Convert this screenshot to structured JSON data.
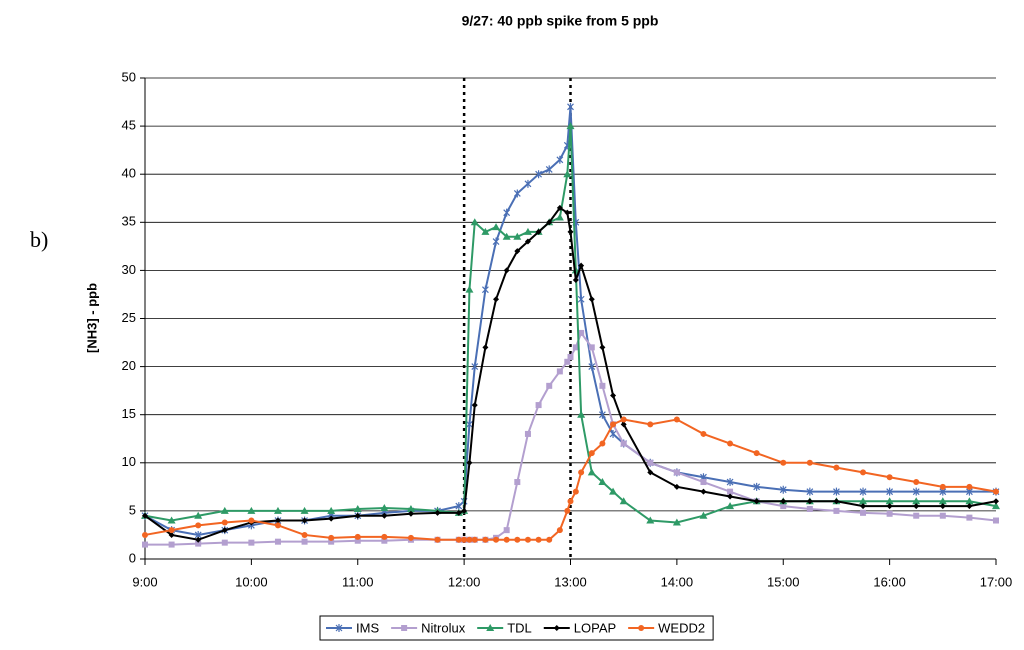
{
  "chart_data": {
    "type": "line",
    "title": "9/27: 40 ppb spike from 5 ppb",
    "panel_label": "b)",
    "ylabel": "[NH3] - ppb",
    "x": [
      9,
      9.25,
      9.5,
      9.75,
      10,
      10.25,
      10.5,
      10.75,
      11,
      11.25,
      11.5,
      11.75,
      11.95,
      12.0,
      12.05,
      12.1,
      12.2,
      12.3,
      12.4,
      12.5,
      12.6,
      12.7,
      12.8,
      12.9,
      12.97,
      13.0,
      13.05,
      13.1,
      13.2,
      13.3,
      13.4,
      13.5,
      13.75,
      14,
      14.25,
      14.5,
      14.75,
      15,
      15.25,
      15.5,
      15.75,
      16,
      16.25,
      16.5,
      16.75,
      17
    ],
    "series": [
      {
        "name": "IMS",
        "color": "#4a6fb5",
        "marker": "star",
        "values": [
          4.5,
          3,
          2.5,
          3,
          3.5,
          4,
          4,
          4.5,
          4.5,
          4.8,
          5,
          5,
          5.5,
          6,
          14,
          20,
          28,
          33,
          36,
          38,
          39,
          40,
          40.5,
          41.5,
          43,
          47,
          35,
          27,
          20,
          15,
          13,
          12,
          10,
          9,
          8.5,
          8,
          7.5,
          7.2,
          7,
          7,
          7,
          7,
          7,
          7,
          7,
          7
        ]
      },
      {
        "name": "Nitrolux",
        "color": "#b39fcf",
        "marker": "square",
        "values": [
          1.5,
          1.5,
          1.6,
          1.7,
          1.7,
          1.8,
          1.8,
          1.8,
          1.9,
          1.9,
          2,
          2,
          2,
          2,
          2,
          2,
          2,
          2.2,
          3,
          8,
          13,
          16,
          18,
          19.5,
          20.5,
          21,
          22,
          23.5,
          22,
          18,
          14,
          12,
          10,
          9,
          8,
          7,
          6,
          5.5,
          5.2,
          5,
          4.8,
          4.7,
          4.5,
          4.5,
          4.3,
          4
        ]
      },
      {
        "name": "TDL",
        "color": "#2e9a66",
        "marker": "triangle",
        "values": [
          4.5,
          4,
          4.5,
          5,
          5,
          5,
          5,
          5,
          5.2,
          5.3,
          5.2,
          5,
          4.8,
          5,
          28,
          35,
          34,
          34.5,
          33.5,
          33.5,
          34,
          34,
          35,
          35.5,
          40,
          45,
          30,
          15,
          9,
          8,
          7,
          6,
          4,
          3.8,
          4.5,
          5.5,
          6,
          6,
          6,
          6,
          6,
          6,
          6,
          6,
          6,
          5.5
        ]
      },
      {
        "name": "LOPAP",
        "color": "#000000",
        "marker": "diamond",
        "values": [
          4.5,
          2.5,
          2,
          3,
          3.8,
          4,
          4,
          4.2,
          4.5,
          4.5,
          4.7,
          4.8,
          4.8,
          5,
          10,
          16,
          22,
          27,
          30,
          32,
          33,
          34,
          35,
          36.5,
          36,
          34,
          29,
          30.5,
          27,
          22,
          17,
          14,
          9,
          7.5,
          7,
          6.5,
          6,
          6,
          6,
          6,
          5.5,
          5.5,
          5.5,
          5.5,
          5.5,
          6
        ]
      },
      {
        "name": "WEDD2",
        "color": "#f26522",
        "marker": "circle",
        "values": [
          2.5,
          3,
          3.5,
          3.8,
          4,
          3.5,
          2.5,
          2.2,
          2.3,
          2.3,
          2.2,
          2,
          2,
          2,
          2,
          2,
          2,
          2,
          2,
          2,
          2,
          2,
          2,
          3,
          5,
          6,
          7,
          9,
          11,
          12,
          14,
          14.5,
          14,
          14.5,
          13,
          12,
          11,
          10,
          10,
          9.5,
          9,
          8.5,
          8,
          7.5,
          7.5,
          7
        ]
      }
    ],
    "xlim": [
      9,
      17
    ],
    "xticks": [
      {
        "value": 9,
        "label": "9:00"
      },
      {
        "value": 10,
        "label": "10:00"
      },
      {
        "value": 11,
        "label": "11:00"
      },
      {
        "value": 12,
        "label": "12:00"
      },
      {
        "value": 13,
        "label": "13:00"
      },
      {
        "value": 14,
        "label": "14:00"
      },
      {
        "value": 15,
        "label": "15:00"
      },
      {
        "value": 16,
        "label": "16:00"
      },
      {
        "value": 17,
        "label": "17:00"
      }
    ],
    "ylim": [
      0,
      50
    ],
    "yticks": [
      0,
      5,
      10,
      15,
      20,
      25,
      30,
      35,
      40,
      45,
      50
    ],
    "vlines": [
      12,
      13
    ],
    "grid": true,
    "legend": "bottom"
  }
}
